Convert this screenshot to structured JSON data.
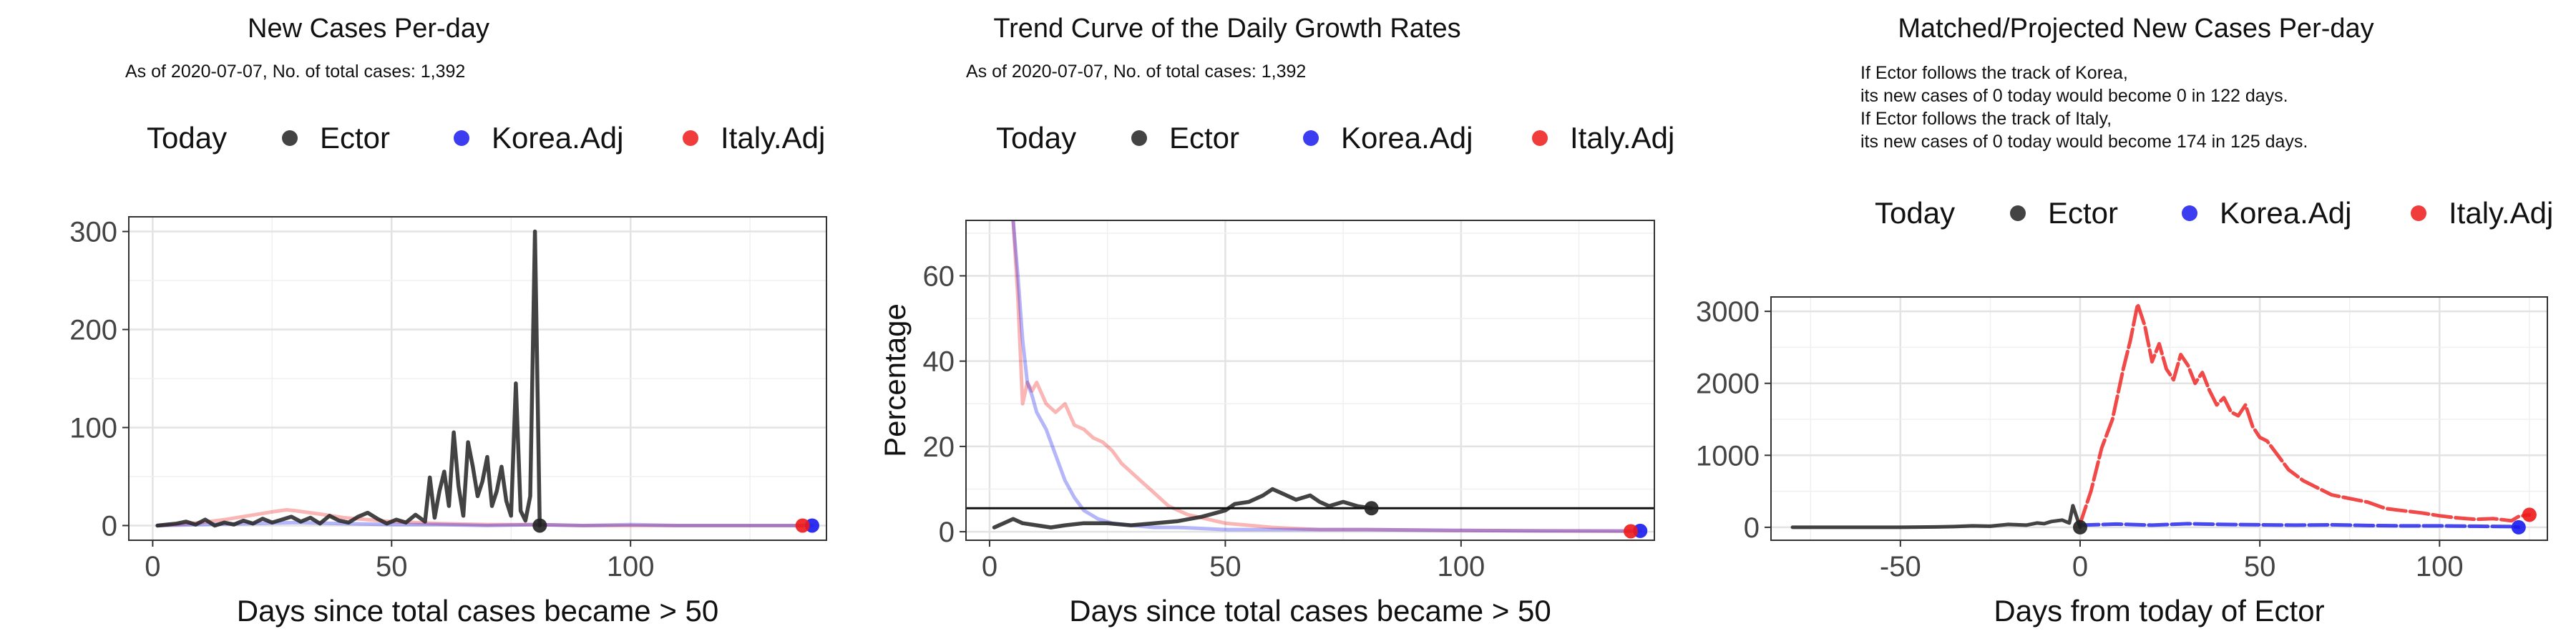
{
  "panels": [
    {
      "title": "New Cases Per-day",
      "subtitle": "As of 2020-07-07, No. of total cases: 1,392",
      "notes": []
    },
    {
      "title": "Trend Curve of the Daily Growth Rates",
      "subtitle": "As of 2020-07-07, No. of total cases: 1,392",
      "notes": []
    },
    {
      "title": "Matched/Projected New Cases Per-day",
      "subtitle": "",
      "notes": [
        "If Ector follows the track of Korea,",
        "its new cases of 0 today would become 0 in 122 days.",
        "If Ector follows the track of Italy,",
        "its new cases of 0 today would become 174 in 125 days."
      ]
    }
  ],
  "legend": {
    "title": "Today",
    "items": [
      {
        "label": "Ector",
        "color": "#222222"
      },
      {
        "label": "Korea.Adj",
        "color": "#1a1aee"
      },
      {
        "label": "Italy.Adj",
        "color": "#ee1a1a"
      }
    ]
  },
  "chart_data": [
    {
      "type": "line",
      "title": "New Cases Per-day",
      "xlabel": "Days since total cases became > 50",
      "ylabel": "",
      "xlim": [
        -5,
        141
      ],
      "ylim": [
        -15,
        315
      ],
      "xticks": [
        0,
        50,
        100
      ],
      "yticks": [
        0,
        100,
        200,
        300
      ],
      "legend_position": "top",
      "grid": true,
      "series": [
        {
          "name": "Ector",
          "color": "#222222",
          "x": [
            1,
            3,
            5,
            7,
            9,
            11,
            13,
            15,
            17,
            19,
            21,
            23,
            25,
            27,
            29,
            31,
            33,
            35,
            37,
            39,
            41,
            43,
            45,
            47,
            49,
            51,
            53,
            55,
            57,
            58,
            59,
            60,
            61,
            62,
            63,
            64,
            65,
            66,
            67,
            68,
            69,
            70,
            71,
            72,
            73,
            74,
            75,
            76,
            77,
            78,
            79,
            80,
            81
          ],
          "values": [
            0,
            1,
            2,
            4,
            1,
            6,
            0,
            3,
            1,
            5,
            2,
            7,
            3,
            6,
            9,
            4,
            8,
            2,
            10,
            5,
            3,
            9,
            13,
            7,
            2,
            6,
            3,
            11,
            4,
            49,
            8,
            35,
            55,
            20,
            95,
            40,
            10,
            85,
            60,
            30,
            45,
            70,
            20,
            35,
            60,
            25,
            10,
            145,
            15,
            5,
            30,
            300,
            0
          ]
        },
        {
          "name": "Korea.Adj",
          "color": "#1a1aee",
          "x": [
            1,
            10,
            20,
            30,
            40,
            50,
            60,
            70,
            80,
            90,
            100,
            110,
            120,
            130,
            138
          ],
          "values": [
            0,
            1,
            2,
            3,
            2,
            1,
            1,
            0,
            1,
            0,
            1,
            0,
            0,
            0,
            0
          ]
        },
        {
          "name": "Italy.Adj",
          "color": "#ee1a1a",
          "x": [
            1,
            5,
            10,
            15,
            20,
            25,
            28,
            30,
            33,
            36,
            40,
            45,
            50,
            55,
            60,
            70,
            80,
            90,
            100,
            110,
            120,
            130,
            136
          ],
          "values": [
            0,
            1,
            3,
            6,
            10,
            14,
            16,
            15,
            13,
            11,
            8,
            6,
            4,
            3,
            2,
            1,
            1,
            0,
            0,
            0,
            0,
            0,
            0
          ]
        }
      ]
    },
    {
      "type": "line",
      "title": "Trend Curve of the Daily Growth Rates",
      "xlabel": "Days since total cases became > 50",
      "ylabel": "Percentage",
      "xlim": [
        -5,
        141
      ],
      "ylim": [
        -2,
        73
      ],
      "xticks": [
        0,
        50,
        100
      ],
      "yticks": [
        0,
        20,
        40,
        60
      ],
      "hline": 5.5,
      "legend_position": "top",
      "grid": true,
      "series": [
        {
          "name": "Ector",
          "color": "#222222",
          "x": [
            1,
            3,
            5,
            7,
            10,
            13,
            16,
            20,
            25,
            30,
            35,
            40,
            45,
            50,
            52,
            55,
            58,
            60,
            62,
            65,
            68,
            70,
            72,
            75,
            78,
            81
          ],
          "values": [
            1,
            2,
            3,
            2,
            1.5,
            1,
            1.5,
            2,
            2,
            1.5,
            2,
            2.5,
            3.5,
            5,
            6.5,
            7,
            8.5,
            10,
            9,
            7.5,
            8.5,
            7,
            6,
            7,
            6,
            5.5
          ]
        },
        {
          "name": "Korea.Adj",
          "color": "#1a1aee",
          "x": [
            5,
            6,
            7,
            8,
            9,
            10,
            12,
            14,
            16,
            18,
            20,
            23,
            26,
            30,
            35,
            40,
            50,
            60,
            80,
            100,
            120,
            138
          ],
          "values": [
            73,
            60,
            45,
            35,
            32,
            28,
            24,
            18,
            12,
            8,
            5,
            3,
            2,
            1.5,
            1,
            1,
            0.5,
            0.5,
            0.5,
            0.3,
            0.2,
            0.2
          ]
        },
        {
          "name": "Italy.Adj",
          "color": "#ee1a1a",
          "x": [
            5,
            6,
            7,
            8,
            9,
            10,
            12,
            14,
            16,
            18,
            20,
            22,
            24,
            26,
            28,
            30,
            32,
            35,
            38,
            42,
            46,
            50,
            55,
            60,
            70,
            80,
            100,
            120,
            136
          ],
          "values": [
            73,
            55,
            30,
            35,
            33,
            35,
            30,
            28,
            30,
            25,
            24,
            22,
            21,
            19,
            16,
            14,
            12,
            9,
            6,
            4,
            3,
            2,
            1.5,
            1,
            0.5,
            0.5,
            0.3,
            0.2,
            0.1
          ]
        }
      ]
    },
    {
      "type": "line",
      "title": "Matched/Projected New Cases Per-day",
      "xlabel": "Days from today of Ector",
      "ylabel": "",
      "xlim": [
        -86,
        130
      ],
      "ylim": [
        -180,
        3200
      ],
      "xticks": [
        -50,
        0,
        50,
        100
      ],
      "yticks": [
        0,
        1000,
        2000,
        3000
      ],
      "legend_position": "top",
      "grid": true,
      "series": [
        {
          "name": "Ector",
          "color": "#222222",
          "x": [
            -80,
            -70,
            -60,
            -50,
            -40,
            -35,
            -30,
            -25,
            -20,
            -15,
            -12,
            -10,
            -8,
            -5,
            -3,
            -2,
            0
          ],
          "values": [
            0,
            0,
            0,
            0,
            5,
            10,
            20,
            15,
            40,
            30,
            60,
            50,
            80,
            100,
            60,
            300,
            0
          ]
        },
        {
          "name": "Korea.Adj",
          "color": "#1a1aee",
          "x": [
            0,
            10,
            20,
            30,
            40,
            50,
            60,
            70,
            80,
            90,
            100,
            110,
            120,
            122
          ],
          "values": [
            30,
            45,
            30,
            50,
            40,
            35,
            30,
            35,
            25,
            20,
            20,
            15,
            10,
            0
          ]
        },
        {
          "name": "Italy.Adj",
          "color": "#ee1a1a",
          "x": [
            0,
            3,
            6,
            9,
            12,
            14,
            16,
            18,
            20,
            22,
            24,
            26,
            28,
            30,
            32,
            34,
            36,
            38,
            40,
            42,
            44,
            46,
            48,
            50,
            52,
            55,
            58,
            62,
            66,
            70,
            75,
            80,
            85,
            90,
            95,
            100,
            105,
            110,
            115,
            120,
            122,
            125
          ],
          "values": [
            50,
            500,
            1100,
            1500,
            2200,
            2600,
            3100,
            2800,
            2300,
            2550,
            2200,
            2050,
            2400,
            2250,
            2000,
            2150,
            1900,
            1700,
            1800,
            1600,
            1550,
            1700,
            1400,
            1250,
            1200,
            1000,
            800,
            650,
            550,
            450,
            400,
            350,
            260,
            230,
            200,
            160,
            130,
            110,
            120,
            90,
            150,
            174
          ]
        }
      ]
    }
  ]
}
